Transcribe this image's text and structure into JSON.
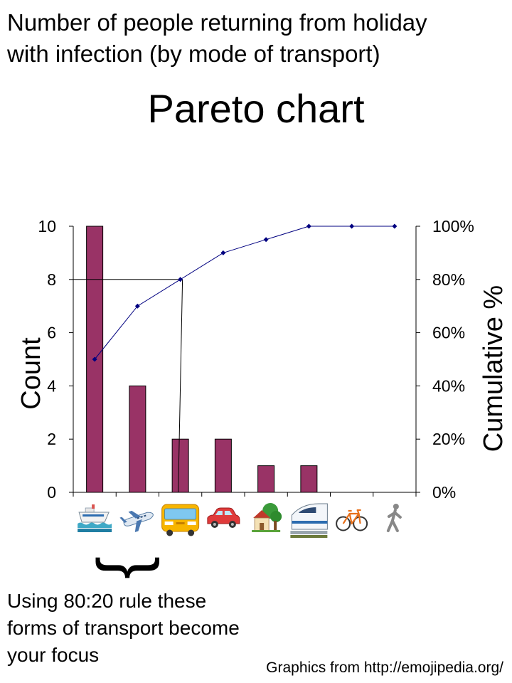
{
  "header": {
    "line1": "Number of people returning from holiday",
    "line2": "with infection (by mode of transport)"
  },
  "note": {
    "line1": "Using 80:20 rule these",
    "line2": "forms of transport become",
    "line3": "your focus",
    "brace": "}"
  },
  "credit": "Graphics from http://emojipedia.org/",
  "colors": {
    "bar": "#993366",
    "line": "#000080",
    "axis": "#000000"
  },
  "chart_data": {
    "type": "bar",
    "title": "Pareto chart",
    "ylabel": "Count",
    "y2label": "Cumulative %",
    "ylim": [
      0,
      10
    ],
    "y2lim": [
      0,
      100
    ],
    "yticks": [
      "0",
      "2",
      "4",
      "6",
      "8",
      "10"
    ],
    "y2ticks": [
      "0%",
      "20%",
      "40%",
      "60%",
      "80%",
      "100%"
    ],
    "categories": [
      "ship",
      "airplane",
      "bus",
      "car",
      "house-with-garden",
      "high-speed-train",
      "bicycle",
      "pedestrian"
    ],
    "category_icons": [
      "ship-icon",
      "airplane-icon",
      "bus-icon",
      "car-icon",
      "house-with-garden-icon",
      "high-speed-train-icon",
      "bicycle-icon",
      "pedestrian-icon"
    ],
    "series": [
      {
        "type": "bar",
        "axis": "left",
        "values": [
          10,
          4,
          2,
          2,
          1,
          1,
          0,
          0
        ]
      },
      {
        "type": "line",
        "axis": "right",
        "values": [
          50,
          70,
          80,
          90,
          95,
          100,
          100,
          100
        ]
      }
    ],
    "annotation": {
      "cutoff_percent": 80,
      "cutoff_category": "bus"
    },
    "grid": false,
    "legend": "none"
  }
}
